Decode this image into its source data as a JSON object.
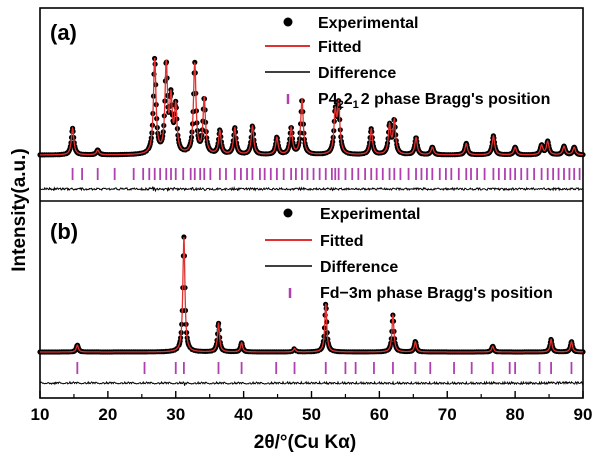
{
  "chart_data": {
    "type": "line",
    "xlabel_main": "2θ/°(Cu K",
    "xlabel_sym": "α",
    "xlabel_end": ")",
    "ylabel": "Intensity(a.u.)",
    "xlim": [
      10,
      90
    ],
    "xticks": [
      "10",
      "20",
      "30",
      "40",
      "50",
      "60",
      "70",
      "80",
      "90"
    ],
    "colors": {
      "experimental": "#000000",
      "fitted": "#e03030",
      "difference": "#000000",
      "bragg": "#b040b0"
    },
    "panels": [
      {
        "label": "(a)",
        "legend": {
          "experimental": "Experimental",
          "fitted": "Fitted",
          "difference": "Difference",
          "bragg_pre": "P4",
          "bragg_sub1": "2",
          "bragg_mid": "2",
          "bragg_sub2": "1",
          "bragg_post": "2 phase Bragg's position"
        },
        "peaks": [
          {
            "x": 14.8,
            "h": 0.28
          },
          {
            "x": 18.5,
            "h": 0.05
          },
          {
            "x": 26.9,
            "h": 1.0
          },
          {
            "x": 28.6,
            "h": 0.92
          },
          {
            "x": 29.3,
            "h": 0.55
          },
          {
            "x": 30.0,
            "h": 0.48
          },
          {
            "x": 32.8,
            "h": 0.95
          },
          {
            "x": 34.2,
            "h": 0.58
          },
          {
            "x": 36.5,
            "h": 0.25
          },
          {
            "x": 38.7,
            "h": 0.28
          },
          {
            "x": 41.3,
            "h": 0.3
          },
          {
            "x": 44.9,
            "h": 0.18
          },
          {
            "x": 47.0,
            "h": 0.28
          },
          {
            "x": 48.6,
            "h": 0.58
          },
          {
            "x": 53.5,
            "h": 0.42
          },
          {
            "x": 54.0,
            "h": 0.5
          },
          {
            "x": 58.8,
            "h": 0.27
          },
          {
            "x": 61.5,
            "h": 0.3
          },
          {
            "x": 62.2,
            "h": 0.35
          },
          {
            "x": 65.4,
            "h": 0.18
          },
          {
            "x": 67.8,
            "h": 0.08
          },
          {
            "x": 72.8,
            "h": 0.12
          },
          {
            "x": 76.8,
            "h": 0.2
          },
          {
            "x": 80.0,
            "h": 0.08
          },
          {
            "x": 83.9,
            "h": 0.1
          },
          {
            "x": 84.8,
            "h": 0.14
          },
          {
            "x": 87.2,
            "h": 0.09
          },
          {
            "x": 88.7,
            "h": 0.08
          }
        ],
        "bragg": [
          14.8,
          16.2,
          18.5,
          21.0,
          23.8,
          25.2,
          26.1,
          26.9,
          27.7,
          28.6,
          29.3,
          30.0,
          31.1,
          32.2,
          32.8,
          33.6,
          34.2,
          35.1,
          36.5,
          37.4,
          38.7,
          39.6,
          40.5,
          41.3,
          42.4,
          43.1,
          44.0,
          44.9,
          45.9,
          47.0,
          47.7,
          48.6,
          49.4,
          50.3,
          51.2,
          52.1,
          53.0,
          53.5,
          54.0,
          55.0,
          56.0,
          56.9,
          57.9,
          58.8,
          59.6,
          60.5,
          61.5,
          62.2,
          63.1,
          64.3,
          65.4,
          66.2,
          67.0,
          67.8,
          68.9,
          69.8,
          70.6,
          71.7,
          72.8,
          73.5,
          74.4,
          75.5,
          76.8,
          77.6,
          78.5,
          79.3,
          80.0,
          80.9,
          81.8,
          82.8,
          83.9,
          84.8,
          85.6,
          86.4,
          87.2,
          88.0,
          88.7,
          89.5
        ]
      },
      {
        "label": "(b)",
        "legend": {
          "experimental": "Experimental",
          "fitted": "Fitted",
          "difference": "Difference",
          "bragg": "Fd−3m phase Bragg's position"
        },
        "peaks": [
          {
            "x": 15.5,
            "h": 0.06
          },
          {
            "x": 31.2,
            "h": 1.0
          },
          {
            "x": 36.3,
            "h": 0.25
          },
          {
            "x": 39.7,
            "h": 0.08
          },
          {
            "x": 47.5,
            "h": 0.03
          },
          {
            "x": 52.1,
            "h": 0.42
          },
          {
            "x": 62.0,
            "h": 0.32
          },
          {
            "x": 65.3,
            "h": 0.09
          },
          {
            "x": 76.7,
            "h": 0.05
          },
          {
            "x": 85.3,
            "h": 0.11
          },
          {
            "x": 88.3,
            "h": 0.09
          }
        ],
        "bragg": [
          15.5,
          25.4,
          30.0,
          31.2,
          36.3,
          39.7,
          44.8,
          47.5,
          52.1,
          55.0,
          56.5,
          59.2,
          62.0,
          65.3,
          67.5,
          71.0,
          73.6,
          76.7,
          79.2,
          80.0,
          83.6,
          85.3,
          88.3
        ]
      }
    ]
  }
}
